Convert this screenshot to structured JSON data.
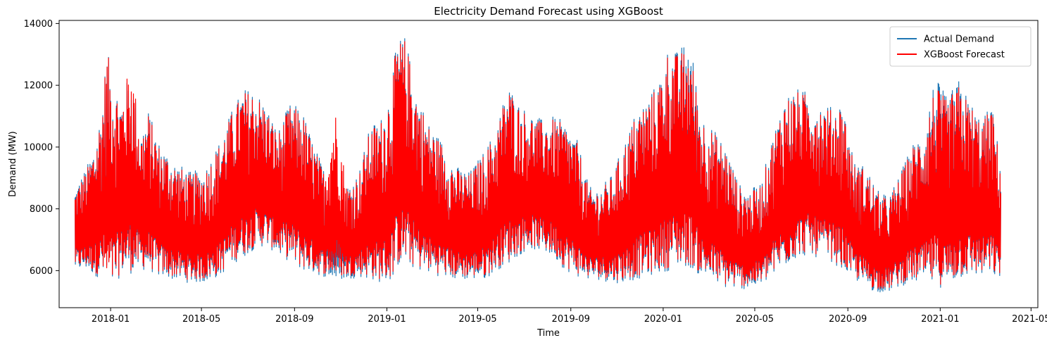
{
  "chart_data": {
    "type": "line",
    "title": "Electricity Demand Forecast using XGBoost",
    "xlabel": "Time",
    "ylabel": "Demand (MW)",
    "x_range": [
      "2017-10-25",
      "2021-05-10"
    ],
    "ylim": [
      4800,
      14100
    ],
    "x_ticks": [
      "2018-01",
      "2018-05",
      "2018-09",
      "2019-01",
      "2019-05",
      "2019-09",
      "2020-01",
      "2020-05",
      "2020-09",
      "2021-01",
      "2021-05"
    ],
    "y_ticks": [
      6000,
      8000,
      10000,
      12000,
      14000
    ],
    "grid": false,
    "legend_position": "upper right",
    "colors": {
      "actual": "#1f77b4",
      "forecast": "#ff0000"
    },
    "series": [
      {
        "name": "Actual Demand",
        "envelope": {
          "x": [
            "2017-11-15",
            "2017-12-01",
            "2017-12-12",
            "2017-12-20",
            "2017-12-27",
            "2018-01-05",
            "2018-01-15",
            "2018-01-28",
            "2018-02-10",
            "2018-02-20",
            "2018-03-05",
            "2018-03-25",
            "2018-04-15",
            "2018-05-05",
            "2018-05-25",
            "2018-06-10",
            "2018-06-25",
            "2018-07-10",
            "2018-07-25",
            "2018-08-10",
            "2018-08-25",
            "2018-09-10",
            "2018-09-25",
            "2018-10-10",
            "2018-10-25",
            "2018-11-10",
            "2018-11-25",
            "2018-12-10",
            "2018-12-25",
            "2019-01-05",
            "2019-01-15",
            "2019-01-25",
            "2019-02-10",
            "2019-02-25",
            "2019-03-15",
            "2019-04-01",
            "2019-04-20",
            "2019-05-10",
            "2019-05-25",
            "2019-06-10",
            "2019-06-25",
            "2019-07-10",
            "2019-07-25",
            "2019-08-10",
            "2019-08-25",
            "2019-09-10",
            "2019-09-25",
            "2019-10-10",
            "2019-10-25",
            "2019-11-10",
            "2019-11-25",
            "2019-12-10",
            "2019-12-25",
            "2020-01-08",
            "2020-01-20",
            "2020-02-05",
            "2020-02-20",
            "2020-03-10",
            "2020-03-25",
            "2020-04-10",
            "2020-04-25",
            "2020-05-10",
            "2020-05-25",
            "2020-06-10",
            "2020-06-25",
            "2020-07-10",
            "2020-07-25",
            "2020-08-10",
            "2020-08-25",
            "2020-09-10",
            "2020-09-25",
            "2020-10-10",
            "2020-10-25",
            "2020-11-10",
            "2020-11-25",
            "2020-12-10",
            "2020-12-25",
            "2021-01-10",
            "2021-01-25",
            "2021-02-10",
            "2021-02-25",
            "2021-03-10",
            "2021-03-22"
          ],
          "high": [
            8700,
            9400,
            10200,
            11300,
            13150,
            12200,
            11600,
            12500,
            10500,
            11200,
            10200,
            9600,
            9200,
            9300,
            10200,
            11200,
            11900,
            11900,
            11400,
            10500,
            11400,
            11300,
            10200,
            9300,
            8900,
            8800,
            9200,
            10700,
            11000,
            11900,
            13550,
            13600,
            11800,
            10800,
            10200,
            9400,
            9200,
            9900,
            10600,
            12100,
            11400,
            11100,
            10900,
            11000,
            10800,
            10200,
            8700,
            8700,
            9100,
            10100,
            11100,
            11600,
            12100,
            13300,
            13100,
            13600,
            11100,
            10500,
            10000,
            8800,
            8600,
            8900,
            10400,
            11700,
            11900,
            11800,
            11500,
            11300,
            11500,
            9500,
            9400,
            8600,
            8400,
            9200,
            10100,
            10600,
            12300,
            11600,
            12200,
            11500,
            10900,
            11400,
            9500
          ],
          "low": [
            6000,
            6000,
            5800,
            5800,
            5400,
            5400,
            5900,
            5900,
            6000,
            6000,
            5800,
            5700,
            5600,
            5600,
            5800,
            6200,
            6400,
            6700,
            6800,
            6500,
            6300,
            6000,
            5900,
            5800,
            5700,
            5700,
            5800,
            5700,
            5600,
            5600,
            6100,
            6200,
            6000,
            5900,
            5800,
            5700,
            5700,
            5700,
            6000,
            6200,
            6500,
            6700,
            6600,
            6400,
            6000,
            5800,
            5700,
            5700,
            5600,
            5600,
            5700,
            5800,
            5900,
            6000,
            6100,
            6100,
            5800,
            5600,
            5400,
            5400,
            5400,
            5500,
            5800,
            6100,
            6400,
            6500,
            6400,
            6300,
            6000,
            5700,
            5400,
            5300,
            5300,
            5500,
            5600,
            5600,
            5500,
            5400,
            5700,
            5800,
            5800,
            5800,
            5700
          ]
        }
      },
      {
        "name": "XGBoost Forecast",
        "envelope": {
          "x": [
            "2017-11-15",
            "2017-12-01",
            "2017-12-12",
            "2017-12-20",
            "2017-12-27",
            "2018-01-05",
            "2018-01-15",
            "2018-01-28",
            "2018-02-10",
            "2018-02-20",
            "2018-03-05",
            "2018-03-25",
            "2018-04-15",
            "2018-05-05",
            "2018-05-25",
            "2018-06-10",
            "2018-06-25",
            "2018-07-10",
            "2018-07-25",
            "2018-08-10",
            "2018-08-25",
            "2018-09-10",
            "2018-09-25",
            "2018-10-10",
            "2018-10-25",
            "2018-11-10",
            "2018-11-25",
            "2018-12-10",
            "2018-12-25",
            "2019-01-05",
            "2019-01-15",
            "2019-01-25",
            "2019-02-10",
            "2019-02-25",
            "2019-03-15",
            "2019-04-01",
            "2019-04-20",
            "2019-05-10",
            "2019-05-25",
            "2019-06-10",
            "2019-06-25",
            "2019-07-10",
            "2019-07-25",
            "2019-08-10",
            "2019-08-25",
            "2019-09-10",
            "2019-09-25",
            "2019-10-10",
            "2019-10-25",
            "2019-11-10",
            "2019-11-25",
            "2019-12-10",
            "2019-12-25",
            "2020-01-08",
            "2020-01-20",
            "2020-02-05",
            "2020-02-20",
            "2020-03-10",
            "2020-03-25",
            "2020-04-10",
            "2020-04-25",
            "2020-05-10",
            "2020-05-25",
            "2020-06-10",
            "2020-06-25",
            "2020-07-10",
            "2020-07-25",
            "2020-08-10",
            "2020-08-25",
            "2020-09-10",
            "2020-09-25",
            "2020-10-10",
            "2020-10-25",
            "2020-11-10",
            "2020-11-25",
            "2020-12-10",
            "2020-12-25",
            "2021-01-10",
            "2021-01-25",
            "2021-02-10",
            "2021-02-25",
            "2021-03-10",
            "2021-03-22"
          ],
          "high": [
            8600,
            9300,
            10100,
            11200,
            13150,
            12100,
            11500,
            12800,
            10400,
            11100,
            10100,
            9500,
            9100,
            9200,
            10100,
            11100,
            11800,
            11800,
            11300,
            10400,
            11300,
            11200,
            10100,
            9200,
            11200,
            8700,
            9100,
            10600,
            10900,
            11800,
            13450,
            13500,
            11700,
            10700,
            10100,
            9300,
            9100,
            9800,
            10500,
            12000,
            11300,
            11000,
            10800,
            10900,
            10700,
            10100,
            8600,
            8600,
            9000,
            10000,
            11000,
            11500,
            12000,
            13200,
            13000,
            13250,
            11000,
            10400,
            9900,
            8700,
            8500,
            8800,
            10300,
            11600,
            11800,
            11700,
            11400,
            11200,
            11400,
            9400,
            9300,
            8500,
            8300,
            9100,
            10000,
            10500,
            12000,
            11500,
            12000,
            11400,
            10800,
            11300,
            9400
          ],
          "low": [
            6100,
            6100,
            5900,
            5900,
            5300,
            5500,
            6000,
            6000,
            6100,
            6100,
            5900,
            5800,
            5700,
            5700,
            5900,
            6300,
            6500,
            6800,
            6900,
            6600,
            6400,
            6100,
            6000,
            5900,
            5800,
            5800,
            5900,
            5800,
            5700,
            5700,
            6200,
            6300,
            6100,
            6000,
            5900,
            5800,
            5800,
            5800,
            6100,
            6300,
            6600,
            6800,
            6700,
            6500,
            6100,
            5900,
            5800,
            5800,
            5700,
            5700,
            5800,
            5900,
            6000,
            6100,
            6200,
            6200,
            5900,
            5700,
            5500,
            5500,
            5500,
            5600,
            5900,
            6200,
            6500,
            6600,
            6500,
            6400,
            6100,
            5800,
            5500,
            5400,
            5400,
            5600,
            5700,
            5700,
            5600,
            5500,
            5800,
            5900,
            5900,
            5900,
            5800
          ]
        }
      }
    ]
  }
}
